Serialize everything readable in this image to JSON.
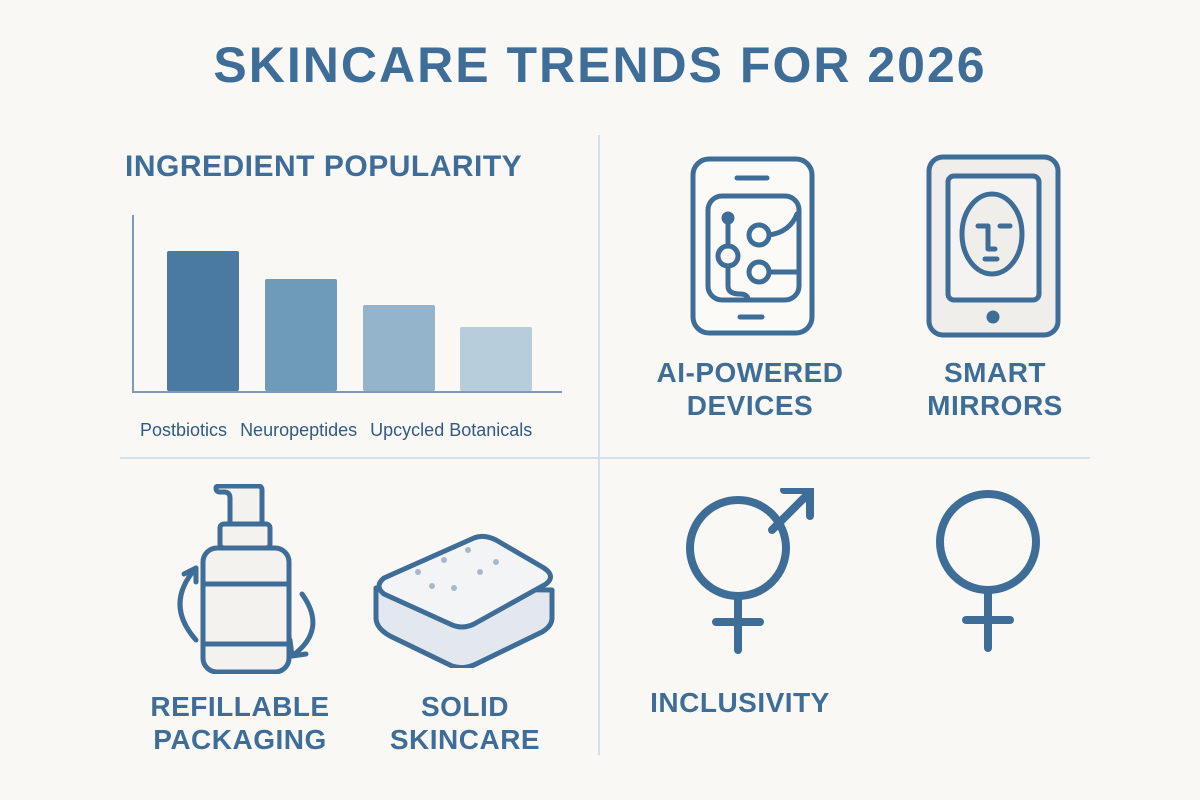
{
  "title": "SKINCARE TRENDS FOR 2026",
  "ingredient_section": {
    "heading": "INGREDIENT POPULARITY"
  },
  "chart_data": {
    "type": "bar",
    "title": "INGREDIENT POPULARITY",
    "categories": [
      "Postbiotics",
      "Neuropeptides",
      "Upcycled Botanicals",
      ""
    ],
    "visible_tick_labels": [
      "Postbiotics",
      "Neuropeptides",
      "Upcycled Botanicals"
    ],
    "values": [
      140,
      112,
      86,
      64
    ],
    "value_units": "relative bar height (px, unlabeled axis)",
    "bar_colors": [
      "#4a7aa2",
      "#6f9bbb",
      "#93b4cb",
      "#b8cddb"
    ],
    "xlabel": "",
    "ylabel": "",
    "ylim": [
      0,
      175
    ],
    "grid": false,
    "legend": null
  },
  "tech": {
    "items": [
      {
        "icon": "ai-phone-icon",
        "label_lines": [
          "AI-POWERED",
          "DEVICES"
        ]
      },
      {
        "icon": "smart-mirror-icon",
        "label_lines": [
          "SMART",
          "MIRRORS"
        ]
      }
    ]
  },
  "sustainability": {
    "items": [
      {
        "icon": "refill-bottle-icon",
        "label_lines": [
          "REFILLABLE",
          "PACKAGING"
        ]
      },
      {
        "icon": "solid-bar-icon",
        "label_lines": [
          "SOLID",
          "SKINCARE"
        ]
      }
    ]
  },
  "inclusivity": {
    "label": "INCLUSIVITY",
    "icons": [
      "gender-inclusive-icon",
      "female-symbol-icon"
    ]
  },
  "colors": {
    "background": "#faf8f4",
    "primary": "#3e6d97",
    "divider": "#d5dfe8"
  }
}
